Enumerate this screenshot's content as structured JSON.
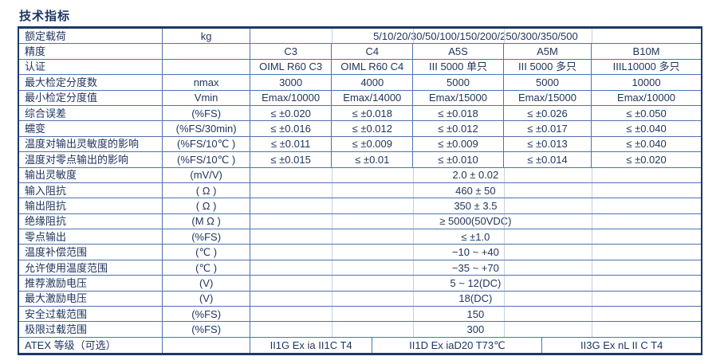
{
  "title": "技术指标",
  "colors": {
    "border": "#4e73ac",
    "border_dark": "#1c3866",
    "text": "#21355c",
    "faint_line": "#c7d1e0",
    "background": "#ffffff"
  },
  "table": {
    "rows": [
      {
        "type": "span",
        "label": "额定载荷",
        "unit": "kg",
        "value": "5/10/20/30/50/100/150/200/250/300/350/500"
      },
      {
        "type": "cols",
        "label": "精度",
        "unit": "",
        "values": [
          "C3",
          "C4",
          "A5S",
          "A5M",
          "B10M"
        ]
      },
      {
        "type": "cols",
        "label": "认证",
        "unit": "",
        "values": [
          "OIML R60 C3",
          "OIML R60 C4",
          "III 5000 单只",
          "III 5000 多只",
          "IIIL10000 多只"
        ]
      },
      {
        "type": "cols",
        "label": "最大检定分度数",
        "unit": "nmax",
        "values": [
          "3000",
          "4000",
          "5000",
          "5000",
          "10000"
        ]
      },
      {
        "type": "cols",
        "label": "最小检定分度值",
        "unit": "Vmin",
        "values": [
          "Emax/10000",
          "Emax/14000",
          "Emax/15000",
          "Emax/15000",
          "Emax/10000"
        ]
      },
      {
        "type": "cols",
        "label": "综合误差",
        "unit": "(%FS)",
        "values": [
          "≤ ±0.020",
          "≤ ±0.018",
          "≤ ±0.018",
          "≤ ±0.026",
          "≤ ±0.050"
        ]
      },
      {
        "type": "cols",
        "label": "蠕变",
        "unit": "(%FS/30min)",
        "values": [
          "≤ ±0.016",
          "≤ ±0.012",
          "≤ ±0.012",
          "≤ ±0.017",
          "≤ ±0.040"
        ]
      },
      {
        "type": "cols",
        "label": "温度对输出灵敏度的影响",
        "unit": "(%FS/10℃ )",
        "values": [
          "≤ ±0.011",
          "≤ ±0.009",
          "≤ ±0.009",
          "≤ ±0.013",
          "≤ ±0.040"
        ]
      },
      {
        "type": "cols",
        "label": "温度对零点输出的影响",
        "unit": "(%FS/10℃ )",
        "values": [
          "≤ ±0.015",
          "≤ ±0.01",
          "≤ ±0.010",
          "≤ ±0.014",
          "≤ ±0.020"
        ]
      },
      {
        "type": "span",
        "label": "输出灵敏度",
        "unit": "(mV/V)",
        "value": "2.0 ± 0.02"
      },
      {
        "type": "span",
        "label": "输入阻抗",
        "unit": "( Ω )",
        "value": "460 ± 50"
      },
      {
        "type": "span",
        "label": "输出阻抗",
        "unit": "( Ω )",
        "value": "350 ± 3.5"
      },
      {
        "type": "span",
        "label": "绝缘阻抗",
        "unit": "(M Ω )",
        "value": "≥ 5000(50VDC)"
      },
      {
        "type": "span",
        "label": "零点输出",
        "unit": "(%FS)",
        "value": "≤ ±1.0"
      },
      {
        "type": "span",
        "label": "温度补偿范围",
        "unit": "(℃ )",
        "value": "−10 ~ +40"
      },
      {
        "type": "span",
        "label": "允许使用温度范围",
        "unit": "(℃ )",
        "value": "−35 ~ +70"
      },
      {
        "type": "span",
        "label": "推荐激励电压",
        "unit": "(V)",
        "value": "5 ~ 12(DC)"
      },
      {
        "type": "span",
        "label": "最大激励电压",
        "unit": "(V)",
        "value": "18(DC)"
      },
      {
        "type": "span",
        "label": "安全过载范围",
        "unit": "(%FS)",
        "value": "150"
      },
      {
        "type": "span",
        "label": "极限过载范围",
        "unit": "(%FS)",
        "value": "300"
      },
      {
        "type": "atex",
        "label": "ATEX 等级（可选）",
        "unit": "",
        "values": [
          "II1G Ex ia II1C T4",
          "II1D Ex iaD20 T73℃",
          "II3G Ex nL II C T4"
        ]
      }
    ]
  }
}
